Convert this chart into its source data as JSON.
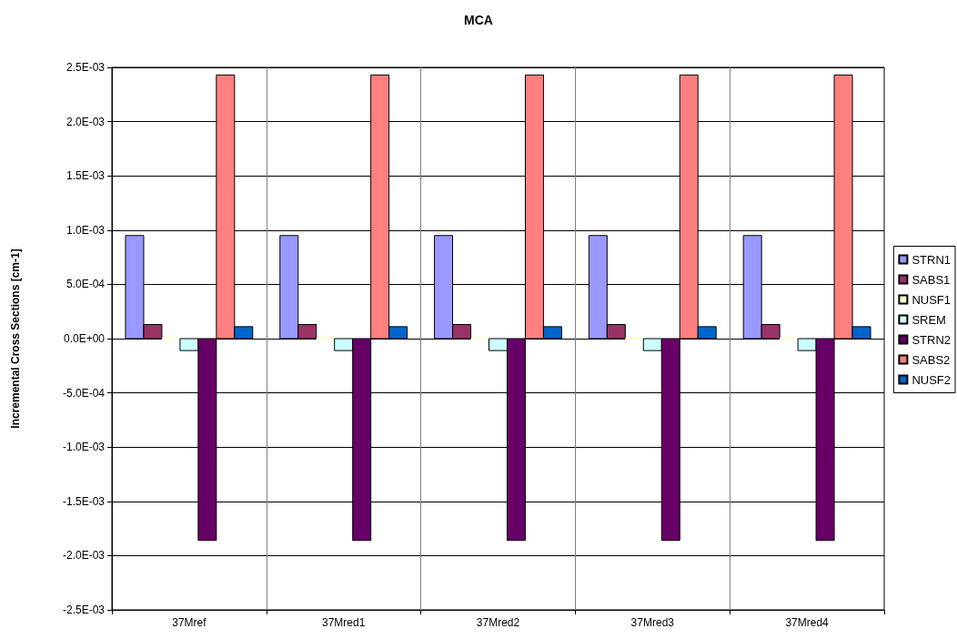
{
  "chart_data": {
    "type": "bar",
    "title": "MCA",
    "ylabel": "Incremental Cross Sections [cm-1]",
    "categories": [
      "37Mref",
      "37Mred1",
      "37Mred2",
      "37Mred3",
      "37Mred4"
    ],
    "series": [
      {
        "name": "STRN1",
        "color": "#9999ff",
        "values": [
          0.00095,
          0.00095,
          0.00095,
          0.00095,
          0.00095
        ]
      },
      {
        "name": "SABS1",
        "color": "#993366",
        "values": [
          0.00013,
          0.00013,
          0.00013,
          0.00013,
          0.00013
        ]
      },
      {
        "name": "NUSF1",
        "color": "#ffffcc",
        "values": [
          0.0,
          0.0,
          0.0,
          0.0,
          0.0
        ]
      },
      {
        "name": "SREM",
        "color": "#ccffff",
        "values": [
          -0.00011,
          -0.00011,
          -0.00011,
          -0.00011,
          -0.00011
        ]
      },
      {
        "name": "STRN2",
        "color": "#660066",
        "values": [
          -0.00186,
          -0.00186,
          -0.00186,
          -0.00186,
          -0.00186
        ]
      },
      {
        "name": "SABS2",
        "color": "#ff8080",
        "values": [
          0.00243,
          0.00243,
          0.00243,
          0.00243,
          0.00243
        ]
      },
      {
        "name": "NUSF2",
        "color": "#0066cc",
        "values": [
          0.00011,
          0.00011,
          0.00011,
          0.00011,
          0.00011
        ]
      }
    ],
    "ylim": [
      -0.0025,
      0.0025
    ],
    "yticks": [
      {
        "value": -0.0025,
        "label": "-2.5E-03"
      },
      {
        "value": -0.002,
        "label": "-2.0E-03"
      },
      {
        "value": -0.0015,
        "label": "-1.5E-03"
      },
      {
        "value": -0.001,
        "label": "-1.0E-03"
      },
      {
        "value": -0.0005,
        "label": "-5.0E-04"
      },
      {
        "value": 0,
        "label": "0.0E+00"
      },
      {
        "value": 0.0005,
        "label": "5.0E-04"
      },
      {
        "value": 0.001,
        "label": "1.0E-03"
      },
      {
        "value": 0.0015,
        "label": "1.5E-03"
      },
      {
        "value": 0.002,
        "label": "2.0E-03"
      },
      {
        "value": 0.0025,
        "label": "2.5E-03"
      }
    ],
    "grid": true,
    "legend": "right"
  }
}
